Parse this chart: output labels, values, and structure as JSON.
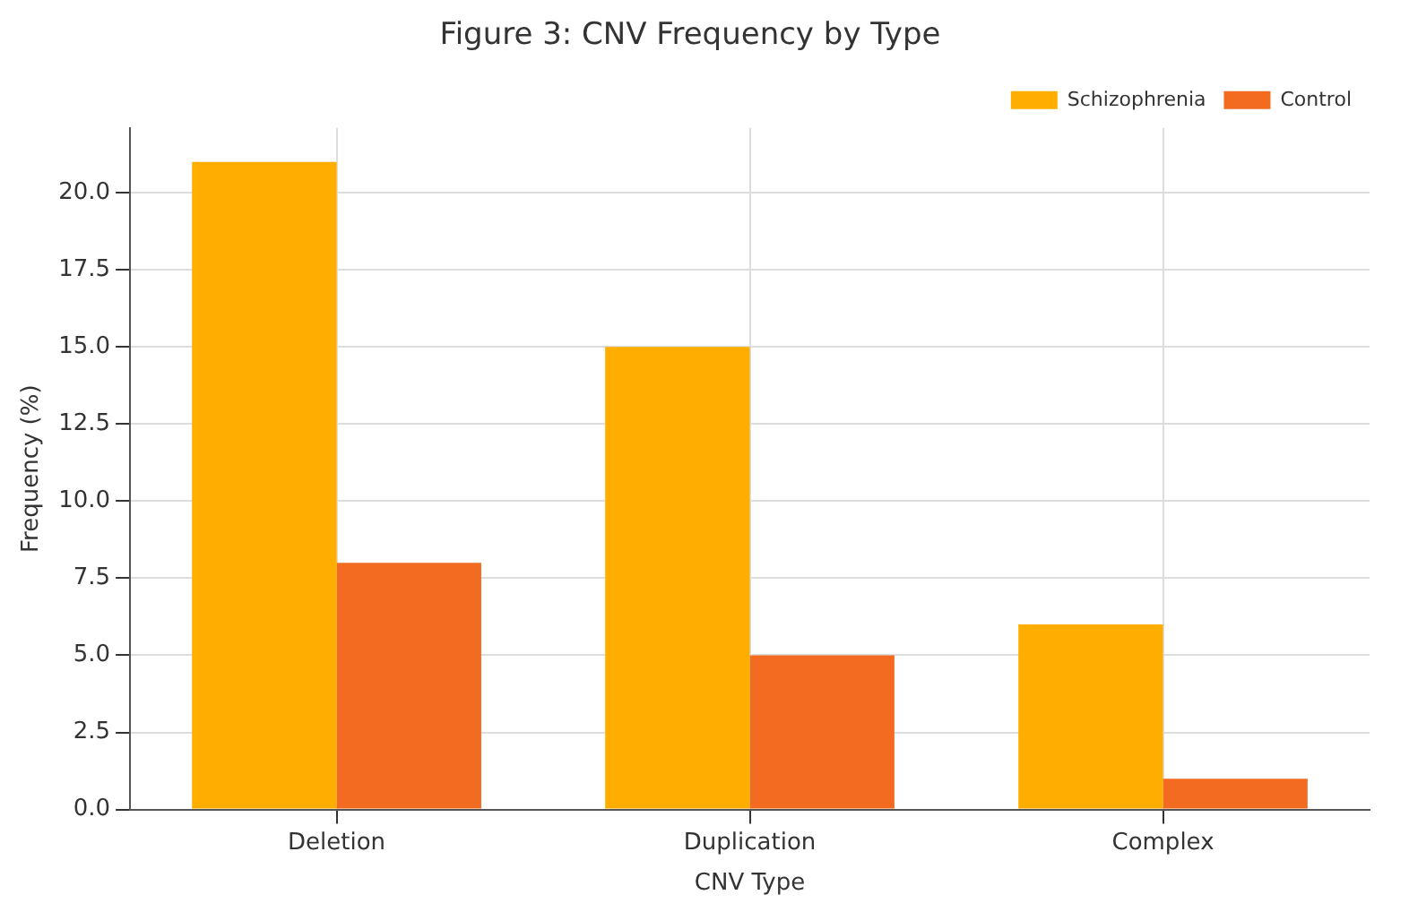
{
  "chart_data": {
    "type": "bar",
    "title": "Figure 3: CNV Frequency by Type",
    "xlabel": "CNV Type",
    "ylabel": "Frequency (%)",
    "categories": [
      "Deletion",
      "Duplication",
      "Complex"
    ],
    "series": [
      {
        "name": "Schizophrenia",
        "color": "#ffae00",
        "values": [
          21,
          15,
          6
        ]
      },
      {
        "name": "Control",
        "color": "#f26b21",
        "values": [
          8,
          5,
          1
        ]
      }
    ],
    "ylim": [
      0,
      22.1
    ],
    "yticks": [
      {
        "value": 0,
        "label": "0.0"
      },
      {
        "value": 2.5,
        "label": "2.5"
      },
      {
        "value": 5,
        "label": "5.0"
      },
      {
        "value": 7.5,
        "label": "7.5"
      },
      {
        "value": 10,
        "label": "10.0"
      },
      {
        "value": 12.5,
        "label": "12.5"
      },
      {
        "value": 15,
        "label": "15.0"
      },
      {
        "value": 17.5,
        "label": "17.5"
      },
      {
        "value": 20,
        "label": "20.0"
      }
    ],
    "grid": true,
    "legend": "top right"
  }
}
